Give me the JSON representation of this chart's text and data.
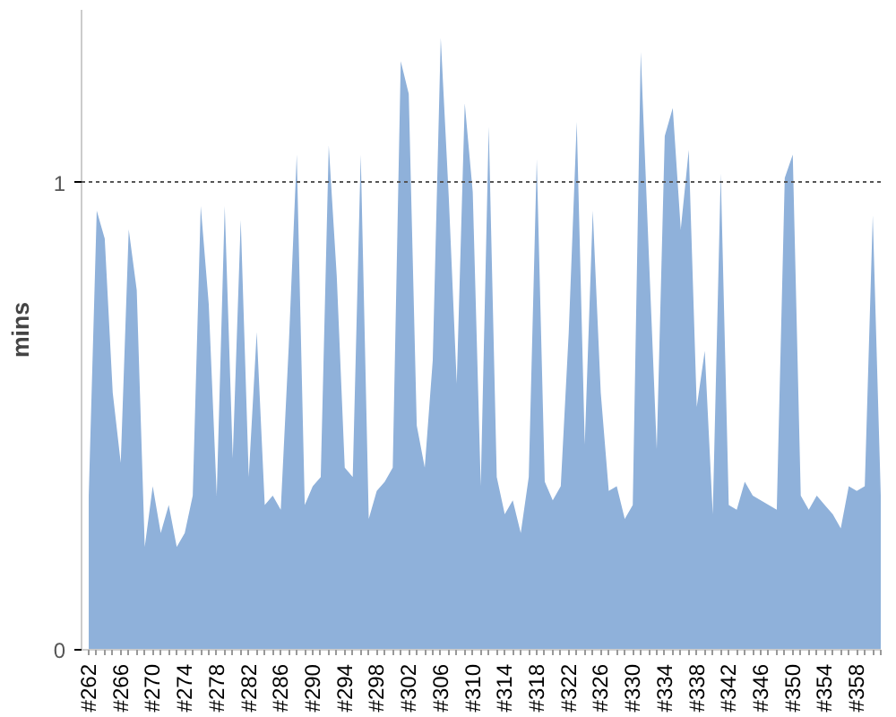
{
  "chart_data": {
    "type": "area",
    "ylabel": "mins",
    "color": "#8fb1da",
    "ylim": [
      0,
      1.37
    ],
    "yticks": [
      0,
      1
    ],
    "grid": "y",
    "categories": [
      "#262",
      null,
      null,
      null,
      "#266",
      null,
      null,
      null,
      "#270",
      null,
      null,
      null,
      "#274",
      null,
      null,
      null,
      "#278",
      null,
      null,
      null,
      "#282",
      null,
      null,
      null,
      "#286",
      null,
      null,
      null,
      "#290",
      null,
      null,
      null,
      "#294",
      null,
      null,
      null,
      "#298",
      null,
      null,
      null,
      "#302",
      null,
      null,
      null,
      "#306",
      null,
      null,
      null,
      "#310",
      null,
      null,
      null,
      "#314",
      null,
      null,
      null,
      "#318",
      null,
      null,
      null,
      "#322",
      null,
      null,
      null,
      "#326",
      null,
      null,
      null,
      "#330",
      null,
      null,
      null,
      "#334",
      null,
      null,
      null,
      "#338",
      null,
      null,
      null,
      "#342",
      null,
      null,
      null,
      "#346",
      null,
      null,
      null,
      "#350",
      null,
      null,
      null,
      "#354",
      null,
      null,
      null,
      "#358",
      null,
      null,
      null
    ],
    "values": [
      0.33,
      0.94,
      0.88,
      0.55,
      0.4,
      0.9,
      0.77,
      0.22,
      0.35,
      0.25,
      0.31,
      0.22,
      0.25,
      0.33,
      0.95,
      0.74,
      0.33,
      0.95,
      0.41,
      0.92,
      0.37,
      0.68,
      0.31,
      0.33,
      0.3,
      0.65,
      1.06,
      0.31,
      0.35,
      0.37,
      1.08,
      0.8,
      0.39,
      0.37,
      1.06,
      0.28,
      0.34,
      0.36,
      0.39,
      1.26,
      1.19,
      0.48,
      0.39,
      0.62,
      1.31,
      0.97,
      0.57,
      1.17,
      0.98,
      0.35,
      1.12,
      0.37,
      0.29,
      0.32,
      0.25,
      0.37,
      1.05,
      0.36,
      0.32,
      0.35,
      0.68,
      1.13,
      0.44,
      0.94,
      0.55,
      0.34,
      0.35,
      0.28,
      0.31,
      1.28,
      0.85,
      0.43,
      1.1,
      1.16,
      0.9,
      1.07,
      0.52,
      0.64,
      0.29,
      1.02,
      0.31,
      0.3,
      0.36,
      0.33,
      0.32,
      0.31,
      0.3,
      1.01,
      1.06,
      0.33,
      0.3,
      0.33,
      0.31,
      0.29,
      0.26,
      0.35,
      0.34,
      0.35,
      0.93,
      0.33
    ]
  }
}
